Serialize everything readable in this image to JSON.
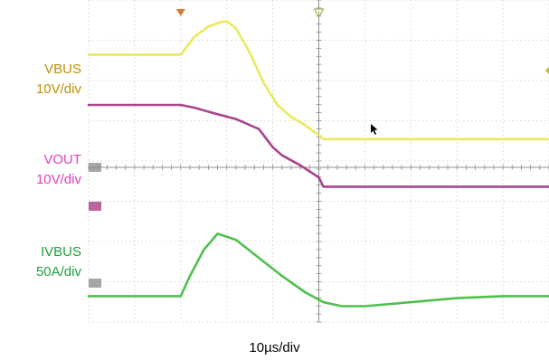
{
  "chart_data": {
    "type": "line",
    "title": "",
    "xlabel": "10µs/div",
    "x_unit": "µs",
    "x_range": [
      -20,
      80
    ],
    "trigger_time_us": 0,
    "cursor_time_us": 30,
    "grid": true,
    "grid_divisions": {
      "x": 10,
      "y": 8
    },
    "series": [
      {
        "name": "VBUS",
        "scale": "10V/div",
        "color": "#e8e84a",
        "label_color": "#c09000",
        "x": [
          -20,
          0,
          3,
          6,
          9,
          10,
          12,
          15,
          18,
          21,
          24,
          27,
          30,
          31,
          40,
          60,
          80
        ],
        "y_div": [
          2.8,
          2.8,
          3.25,
          3.5,
          3.62,
          3.63,
          3.45,
          2.85,
          2.1,
          1.55,
          1.25,
          1.05,
          0.8,
          0.7,
          0.7,
          0.7,
          0.7
        ]
      },
      {
        "name": "VOUT",
        "scale": "10V/div",
        "color": "#a0307f",
        "label_color": "#e040c0",
        "x": [
          -20,
          0,
          3,
          7,
          12,
          17,
          20,
          22,
          26,
          30,
          31,
          40,
          60,
          80
        ],
        "y_div": [
          1.55,
          1.55,
          1.48,
          1.35,
          1.2,
          0.95,
          0.5,
          0.3,
          0.05,
          -0.25,
          -0.48,
          -0.48,
          -0.48,
          -0.48
        ]
      },
      {
        "name": "IVBUS",
        "scale": "50A/div",
        "color": "#3cb83c",
        "label_color": "#20a040",
        "x": [
          -20,
          0,
          2,
          5,
          8,
          12,
          17,
          22,
          27,
          31,
          35,
          40,
          50,
          60,
          70,
          80
        ],
        "y_div": [
          -3.2,
          -3.2,
          -2.7,
          -2.05,
          -1.65,
          -1.8,
          -2.25,
          -2.7,
          -3.1,
          -3.35,
          -3.45,
          -3.45,
          -3.35,
          -3.25,
          -3.2,
          -3.2
        ]
      }
    ]
  }
}
